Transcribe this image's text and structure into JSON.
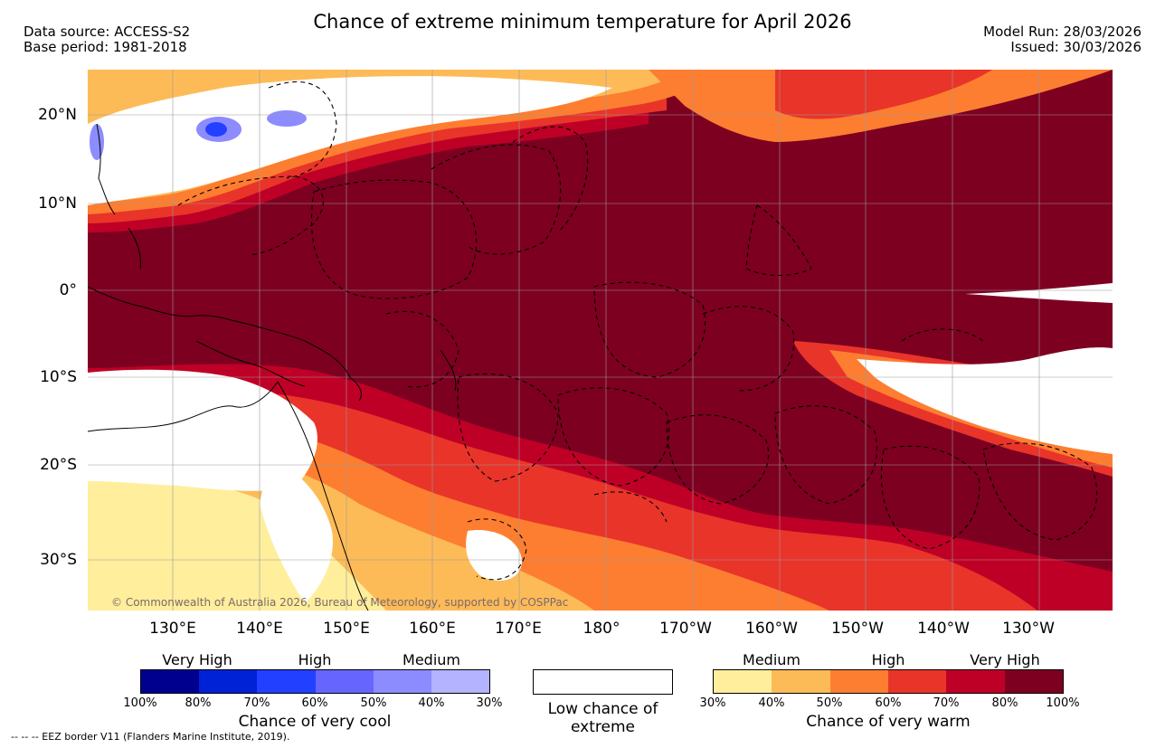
{
  "header": {
    "title": "Chance of extreme minimum temperature for April 2026",
    "data_source": "Data source: ACCESS-S2",
    "base_period": "Base period: 1981-2018",
    "model_run": "Model Run: 28/03/2026",
    "issued": "Issued: 30/03/2026"
  },
  "map": {
    "lat_labels": [
      "20°N",
      "10°N",
      "0°",
      "10°S",
      "20°S",
      "30°S"
    ],
    "lon_labels": [
      "130°E",
      "140°E",
      "150°E",
      "160°E",
      "170°E",
      "180°",
      "170°W",
      "160°W",
      "150°W",
      "140°W",
      "130°W"
    ],
    "copyright": "© Commonwealth of Australia 2026, Bureau of Meteorology, supported by COSPPac"
  },
  "legend": {
    "cool": {
      "headers": [
        "Very High",
        "High",
        "Medium"
      ],
      "colors": [
        "#00008f",
        "#0022d6",
        "#2240ff",
        "#6666ff",
        "#8c8cff",
        "#b3b3ff"
      ],
      "ticks": [
        "100%",
        "80%",
        "70%",
        "60%",
        "50%",
        "40%",
        "30%"
      ],
      "caption": "Chance of very cool"
    },
    "low": {
      "caption": "Low chance of extreme",
      "color": "#ffffff"
    },
    "warm": {
      "headers": [
        "Medium",
        "High",
        "Very High"
      ],
      "colors": [
        "#ffee9c",
        "#fdbb58",
        "#fd7e30",
        "#e9342a",
        "#bf0026",
        "#7d0021"
      ],
      "ticks": [
        "30%",
        "40%",
        "50%",
        "60%",
        "70%",
        "80%",
        "100%"
      ],
      "caption": "Chance of very warm"
    }
  },
  "footer": {
    "eez_note": "--  --  -- EEZ border V11 (Flanders Marine Institute, 2019)."
  }
}
